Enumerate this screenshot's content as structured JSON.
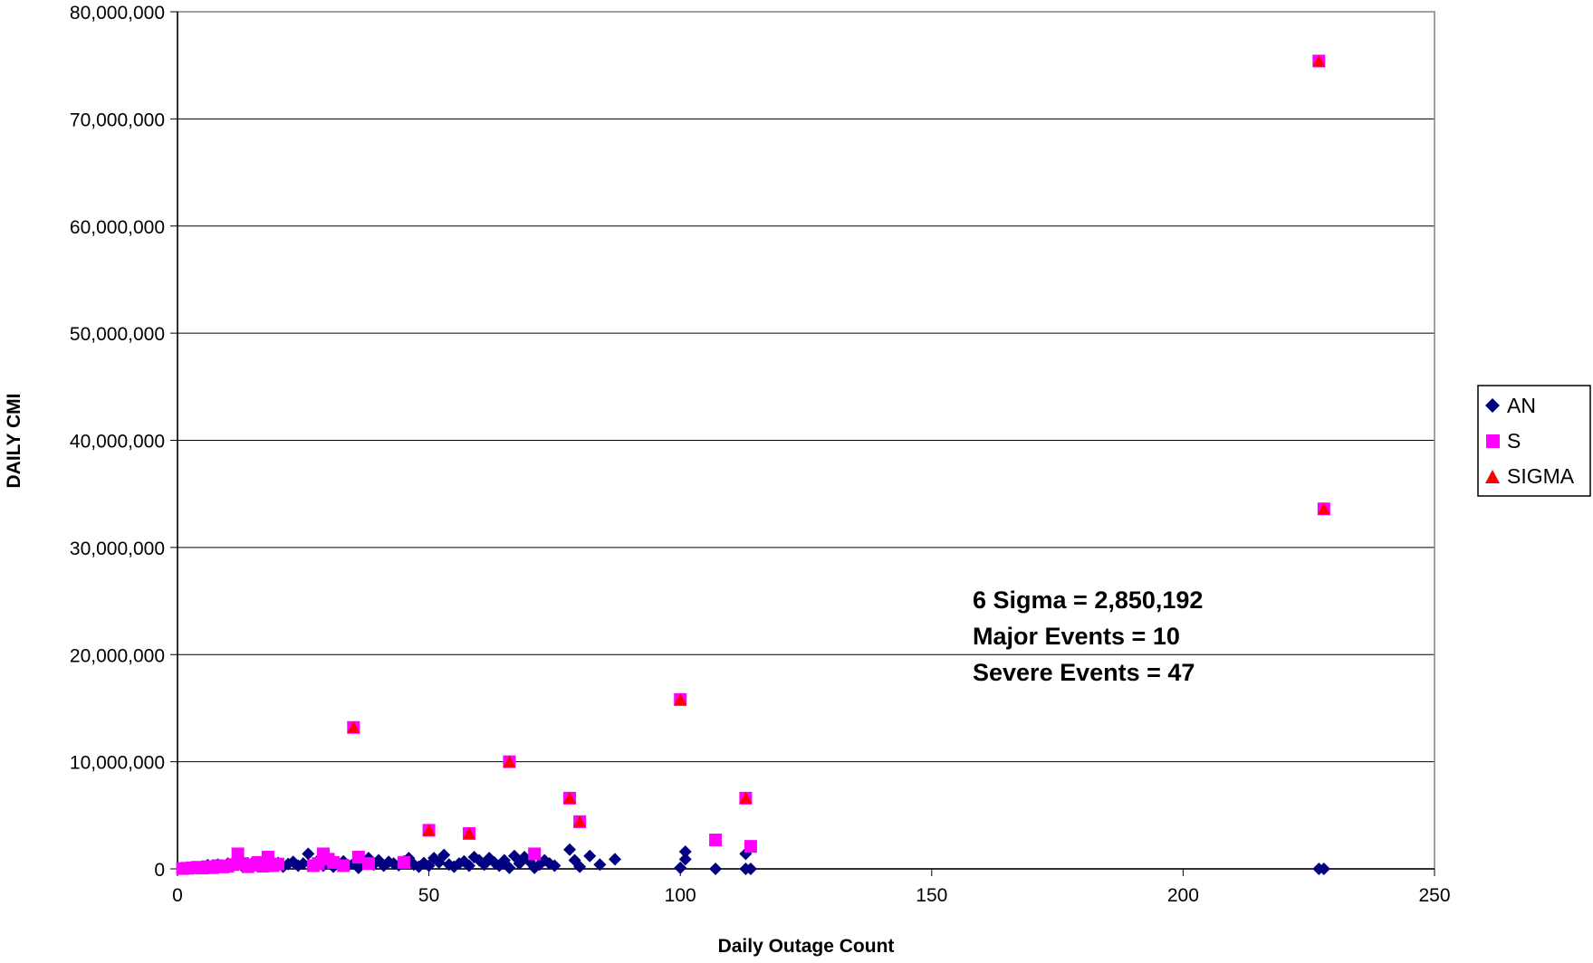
{
  "chart_data": {
    "type": "scatter",
    "title": "",
    "xlabel": "Daily Outage Count",
    "ylabel": "DAILY CMI",
    "xlim": [
      0,
      250
    ],
    "ylim": [
      0,
      80000000
    ],
    "xticks": [
      0,
      50,
      100,
      150,
      200,
      250
    ],
    "xtick_labels": [
      "0",
      "50",
      "100",
      "150",
      "200",
      "250"
    ],
    "yticks": [
      0,
      10000000,
      20000000,
      30000000,
      40000000,
      50000000,
      60000000,
      70000000,
      80000000
    ],
    "ytick_labels": [
      "0",
      "10,000,000",
      "20,000,000",
      "30,000,000",
      "40,000,000",
      "50,000,000",
      "60,000,000",
      "70,000,000",
      "80,000,000"
    ],
    "grid": "horizontal",
    "legend_position": "right",
    "annotations": [
      "6 Sigma = 2,850,192",
      "Major Events = 10",
      "Severe Events = 47"
    ],
    "series": [
      {
        "name": "AN",
        "marker": "diamond",
        "color": "#000080",
        "points": [
          [
            1,
            20000
          ],
          [
            2,
            50000
          ],
          [
            3,
            120000
          ],
          [
            4,
            80000
          ],
          [
            5,
            200000
          ],
          [
            6,
            350000
          ],
          [
            7,
            150000
          ],
          [
            8,
            400000
          ],
          [
            9,
            250000
          ],
          [
            10,
            500000
          ],
          [
            11,
            300000
          ],
          [
            12,
            450000
          ],
          [
            13,
            200000
          ],
          [
            14,
            350000
          ],
          [
            15,
            600000
          ],
          [
            16,
            250000
          ],
          [
            17,
            400000
          ],
          [
            18,
            700000
          ],
          [
            19,
            300000
          ],
          [
            20,
            550000
          ],
          [
            21,
            200000
          ],
          [
            22,
            450000
          ],
          [
            23,
            650000
          ],
          [
            24,
            300000
          ],
          [
            25,
            500000
          ],
          [
            26,
            1400000
          ],
          [
            27,
            350000
          ],
          [
            28,
            800000
          ],
          [
            29,
            300000
          ],
          [
            30,
            600000
          ],
          [
            31,
            200000
          ],
          [
            32,
            450000
          ],
          [
            33,
            700000
          ],
          [
            34,
            350000
          ],
          [
            35,
            500000
          ],
          [
            36,
            100000
          ],
          [
            37,
            600000
          ],
          [
            38,
            1000000
          ],
          [
            39,
            400000
          ],
          [
            40,
            800000
          ],
          [
            41,
            300000
          ],
          [
            42,
            650000
          ],
          [
            43,
            500000
          ],
          [
            44,
            350000
          ],
          [
            45,
            700000
          ],
          [
            46,
            1000000
          ],
          [
            47,
            400000
          ],
          [
            48,
            200000
          ],
          [
            49,
            550000
          ],
          [
            50,
            300000
          ],
          [
            51,
            1000000
          ],
          [
            52,
            600000
          ],
          [
            53,
            1300000
          ],
          [
            54,
            400000
          ],
          [
            55,
            200000
          ],
          [
            56,
            500000
          ],
          [
            57,
            700000
          ],
          [
            58,
            300000
          ],
          [
            59,
            1100000
          ],
          [
            60,
            800000
          ],
          [
            61,
            400000
          ],
          [
            62,
            1000000
          ],
          [
            63,
            600000
          ],
          [
            64,
            300000
          ],
          [
            65,
            800000
          ],
          [
            66,
            100000
          ],
          [
            67,
            1200000
          ],
          [
            68,
            500000
          ],
          [
            69,
            1100000
          ],
          [
            70,
            700000
          ],
          [
            71,
            100000
          ],
          [
            72,
            400000
          ],
          [
            73,
            800000
          ],
          [
            74,
            500000
          ],
          [
            75,
            300000
          ],
          [
            78,
            1800000
          ],
          [
            79,
            800000
          ],
          [
            80,
            200000
          ],
          [
            82,
            1200000
          ],
          [
            84,
            400000
          ],
          [
            87,
            900000
          ],
          [
            100,
            100000
          ],
          [
            101,
            900000
          ],
          [
            101,
            1600000
          ],
          [
            107,
            0
          ],
          [
            113,
            1400000
          ],
          [
            113,
            0
          ],
          [
            114,
            0
          ],
          [
            227,
            0
          ],
          [
            228,
            0
          ]
        ]
      },
      {
        "name": "S",
        "marker": "square",
        "color": "#ff00ff",
        "points": [
          [
            1,
            30000
          ],
          [
            2,
            60000
          ],
          [
            3,
            100000
          ],
          [
            4,
            150000
          ],
          [
            5,
            80000
          ],
          [
            6,
            200000
          ],
          [
            7,
            120000
          ],
          [
            8,
            300000
          ],
          [
            9,
            180000
          ],
          [
            10,
            250000
          ],
          [
            11,
            400000
          ],
          [
            12,
            1400000
          ],
          [
            13,
            500000
          ],
          [
            14,
            200000
          ],
          [
            15,
            350000
          ],
          [
            16,
            600000
          ],
          [
            17,
            250000
          ],
          [
            18,
            1100000
          ],
          [
            19,
            300000
          ],
          [
            20,
            450000
          ],
          [
            27,
            300000
          ],
          [
            28,
            500000
          ],
          [
            29,
            1400000
          ],
          [
            30,
            900000
          ],
          [
            31,
            600000
          ],
          [
            33,
            300000
          ],
          [
            36,
            1100000
          ],
          [
            38,
            500000
          ],
          [
            45,
            600000
          ],
          [
            71,
            1400000
          ],
          [
            107,
            2700000
          ],
          [
            114,
            2100000
          ],
          [
            35,
            13200000
          ],
          [
            50,
            3600000
          ],
          [
            58,
            3300000
          ],
          [
            66,
            10000000
          ],
          [
            78,
            6600000
          ],
          [
            80,
            4400000
          ],
          [
            100,
            15800000
          ],
          [
            113,
            6600000
          ],
          [
            227,
            75400000
          ],
          [
            228,
            33600000
          ]
        ]
      },
      {
        "name": "SIGMA",
        "marker": "triangle",
        "color": "#ff0000",
        "points": [
          [
            35,
            13200000
          ],
          [
            50,
            3600000
          ],
          [
            58,
            3300000
          ],
          [
            66,
            10000000
          ],
          [
            78,
            6600000
          ],
          [
            80,
            4400000
          ],
          [
            100,
            15800000
          ],
          [
            113,
            6600000
          ],
          [
            227,
            75400000
          ],
          [
            228,
            33600000
          ]
        ]
      }
    ]
  }
}
